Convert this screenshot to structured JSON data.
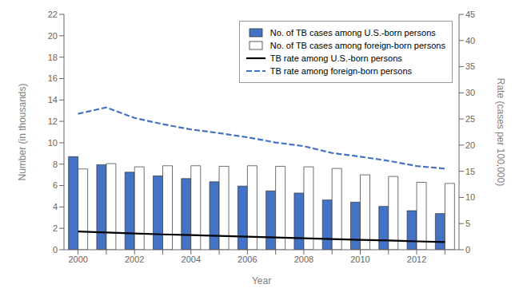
{
  "chart_data": {
    "type": "bar",
    "xlabel": "Year",
    "ylabel": "Number (in thousands)",
    "y2label": "Rate (cases per 100,000)",
    "categories": [
      "2000",
      null,
      "2002",
      null,
      "2004",
      null,
      "2006",
      null,
      "2008",
      null,
      "2010",
      null,
      "2012",
      null
    ],
    "series": [
      {
        "name": "No. of TB cases among U.S.-born persons",
        "type": "bar",
        "color": "#4472C4",
        "values": [
          8.7,
          7.95,
          7.25,
          6.9,
          6.65,
          6.35,
          5.95,
          5.5,
          5.3,
          4.65,
          4.45,
          4.05,
          3.65,
          3.38
        ]
      },
      {
        "name": "No. of TB cases among foreign-born persons",
        "type": "bar",
        "color": "white",
        "values": [
          7.55,
          8.05,
          7.75,
          7.85,
          7.85,
          7.8,
          7.85,
          7.8,
          7.75,
          7.6,
          7.0,
          6.85,
          6.3,
          6.2
        ]
      },
      {
        "name": "TB rate among U.S.-born persons",
        "type": "line",
        "color": "black",
        "line_style": "solid",
        "axis": "y2",
        "values": [
          3.5,
          3.3,
          3.1,
          2.94,
          2.8,
          2.66,
          2.5,
          2.36,
          2.2,
          2.04,
          1.9,
          1.76,
          1.6,
          1.46
        ]
      },
      {
        "name": "TB rate among foreign-born persons",
        "type": "line",
        "color": "#4472C4",
        "line_style": "dashed",
        "axis": "y2",
        "values": [
          26.0,
          27.2,
          25.2,
          24.0,
          23.0,
          22.3,
          21.5,
          20.5,
          19.8,
          18.5,
          17.8,
          17.0,
          16.0,
          15.5
        ]
      }
    ],
    "ylim": [
      0,
      22
    ],
    "yticks": [
      0,
      2,
      4,
      6,
      8,
      10,
      12,
      14,
      16,
      18,
      20,
      22
    ],
    "y2lim": [
      0,
      45
    ],
    "y2ticks": [
      0,
      5,
      10,
      15,
      20,
      25,
      30,
      35,
      40,
      45
    ],
    "grid": false,
    "legend": "upper right"
  }
}
